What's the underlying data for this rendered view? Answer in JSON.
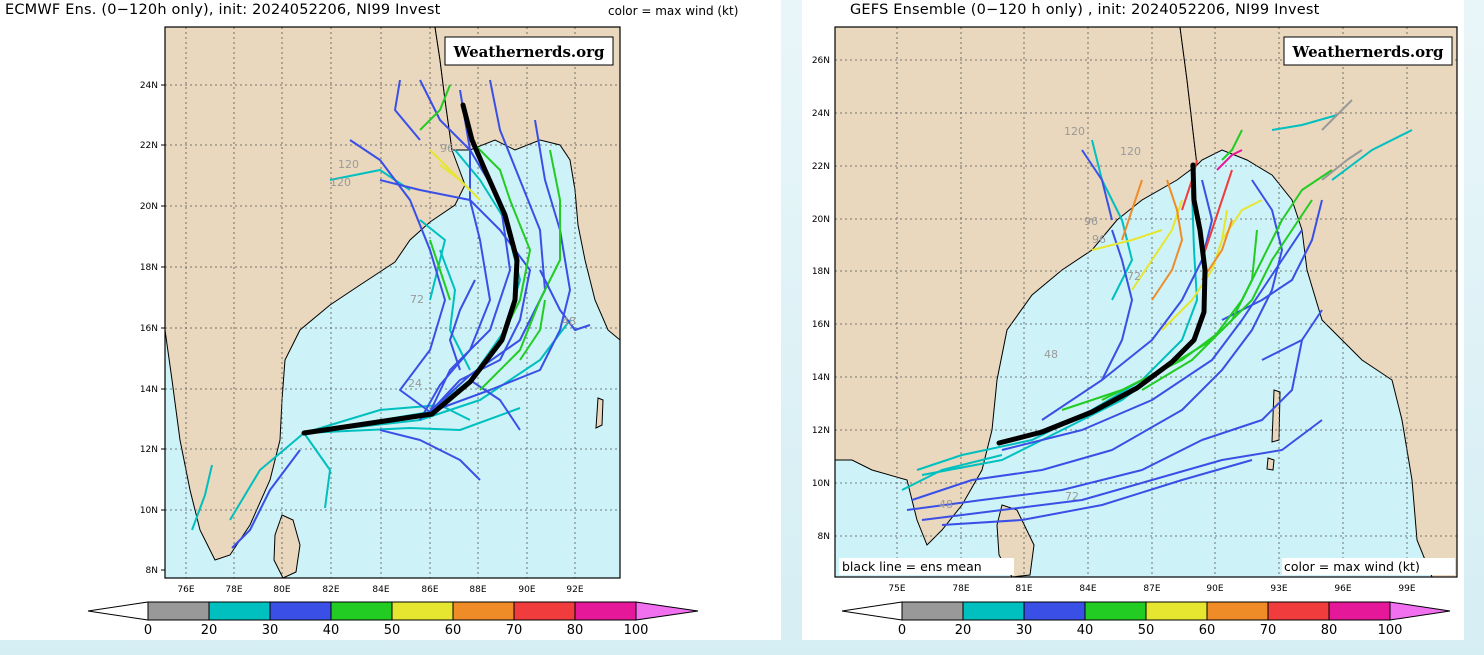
{
  "panels": [
    {
      "id": "ecmwf",
      "title": "ECMWF Ens. (0−120h only), init: 2024052206, NI99 Invest",
      "note": "color = max wind (kt)",
      "watermark": "Weathernerds.org",
      "lat_labels": [
        "24N",
        "22N",
        "20N",
        "18N",
        "16N",
        "14N",
        "12N",
        "10N",
        "8N"
      ],
      "lon_labels": [
        "76E",
        "78E",
        "80E",
        "82E",
        "84E",
        "86E",
        "88E",
        "90E",
        "92E"
      ],
      "hour_labels": [
        "120",
        "120",
        "96",
        "72",
        "48",
        "24"
      ]
    },
    {
      "id": "gefs",
      "title": "GEFS Ensemble (0−120 h only) , init: 2024052206, NI99 Invest",
      "watermark": "Weathernerds.org",
      "legend_mean": "black line = ens mean",
      "note": "color = max wind (kt)",
      "lat_labels": [
        "26N",
        "24N",
        "22N",
        "20N",
        "18N",
        "16N",
        "14N",
        "12N",
        "10N",
        "8N"
      ],
      "lon_labels": [
        "75E",
        "78E",
        "81E",
        "84E",
        "87E",
        "90E",
        "93E",
        "96E",
        "99E"
      ],
      "hour_labels": [
        "120",
        "120",
        "96",
        "96",
        "72",
        "48",
        "48",
        "72"
      ]
    }
  ],
  "colorbar": {
    "labels": [
      "0",
      "20",
      "30",
      "40",
      "50",
      "60",
      "70",
      "80",
      "100"
    ],
    "colors": [
      "#ffffff",
      "#999999",
      "#00bfbf",
      "#3a4fe6",
      "#22cc22",
      "#e6e630",
      "#f08c28",
      "#f03c3c",
      "#e6189a",
      "#f070f0"
    ]
  },
  "colors": {
    "land": "#e9d8be",
    "ocean": "#cdf3f8",
    "mean_track": "#000000"
  }
}
